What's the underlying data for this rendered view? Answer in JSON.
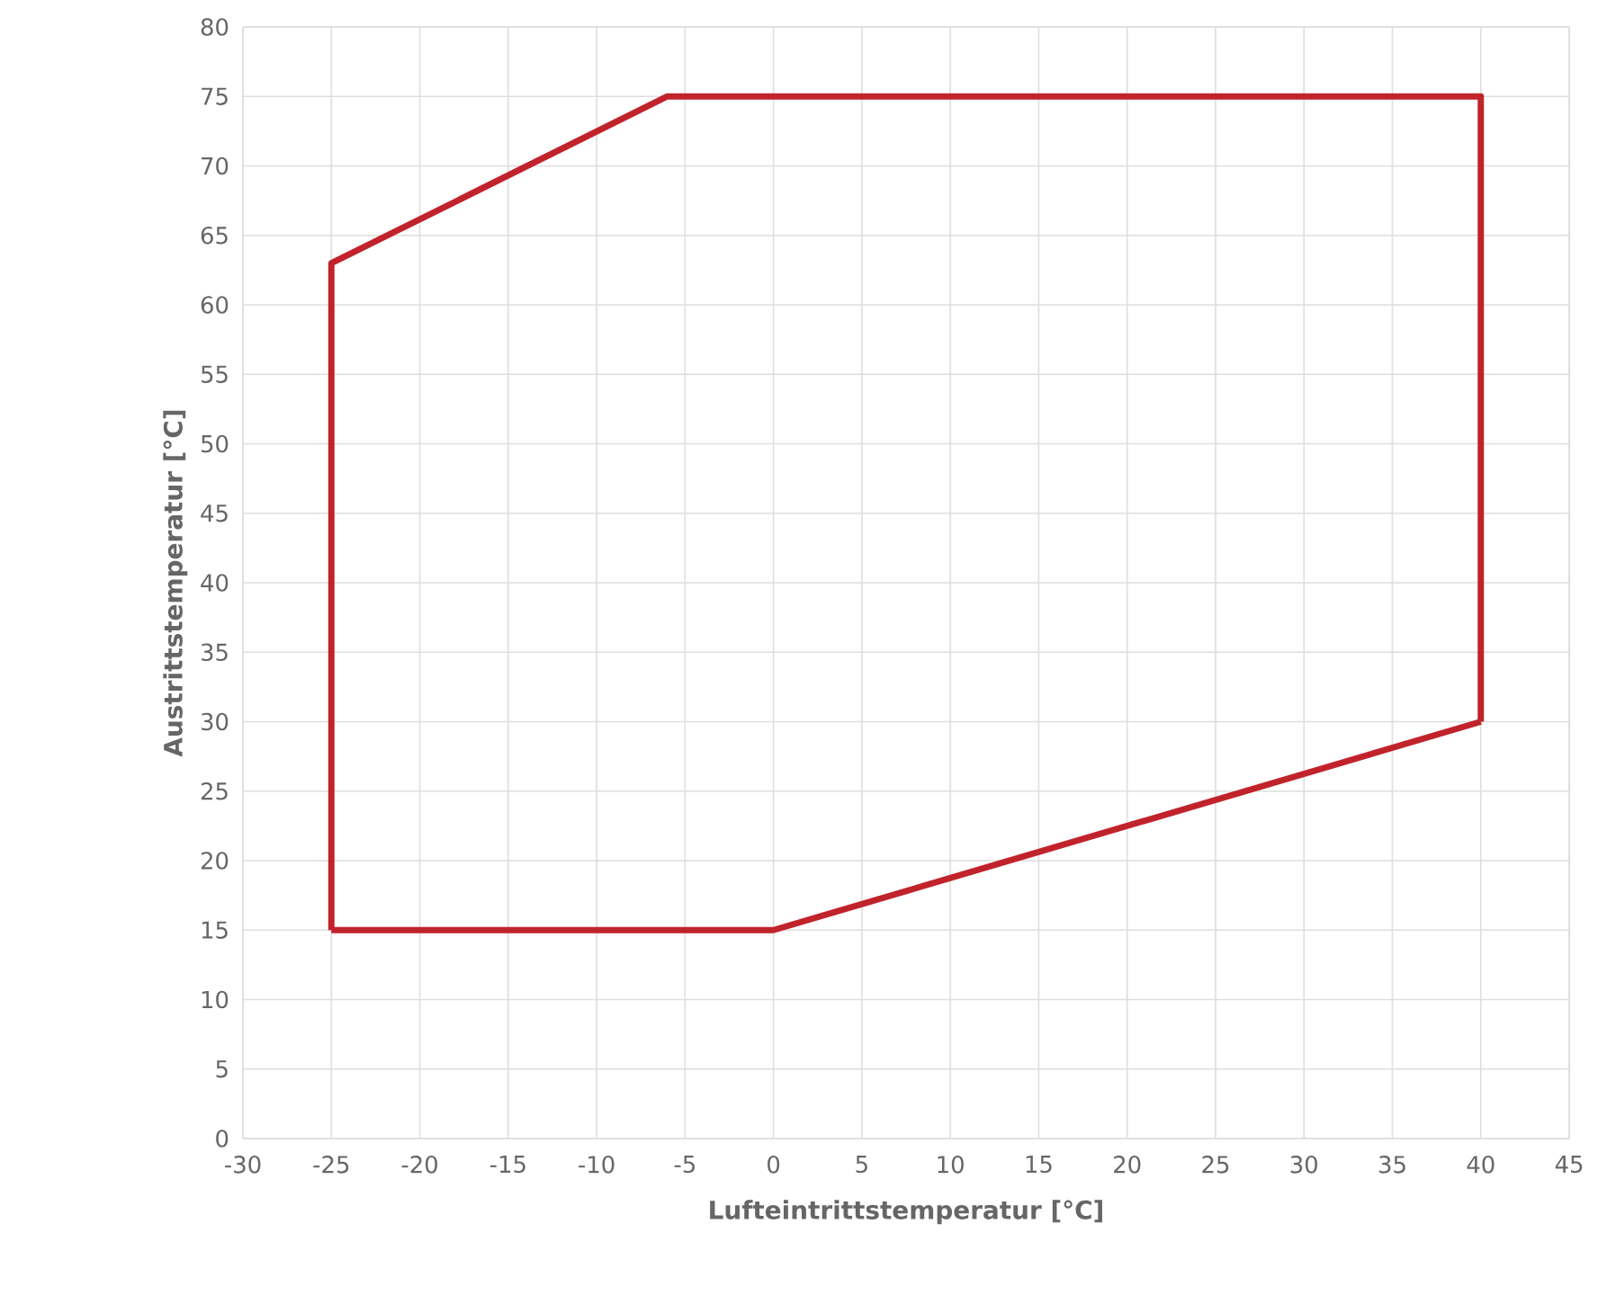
{
  "chart_data": {
    "type": "line",
    "xlabel": "Lufteintrittstemperatur [°C]",
    "ylabel": "Austrittstemperatur [°C]",
    "series": [
      {
        "color": "#c1232b",
        "x": [
          -25,
          -25,
          -6,
          40,
          40
        ],
        "values": [
          15,
          63,
          75,
          75,
          30
        ]
      },
      {
        "color": "#c1232b",
        "x": [
          -25,
          0,
          40
        ],
        "values": [
          15,
          15,
          30
        ]
      }
    ],
    "xlim": [
      -30,
      45
    ],
    "xticks": [
      -30,
      -25,
      -20,
      -15,
      -10,
      -5,
      0,
      5,
      10,
      15,
      20,
      25,
      30,
      35,
      40,
      45
    ],
    "ylim": [
      0,
      80
    ],
    "yticks": [
      0,
      5,
      10,
      15,
      20,
      25,
      30,
      35,
      40,
      45,
      50,
      55,
      60,
      65,
      70,
      75,
      80
    ],
    "grid": true,
    "marker": "none",
    "line_style": "solid"
  }
}
